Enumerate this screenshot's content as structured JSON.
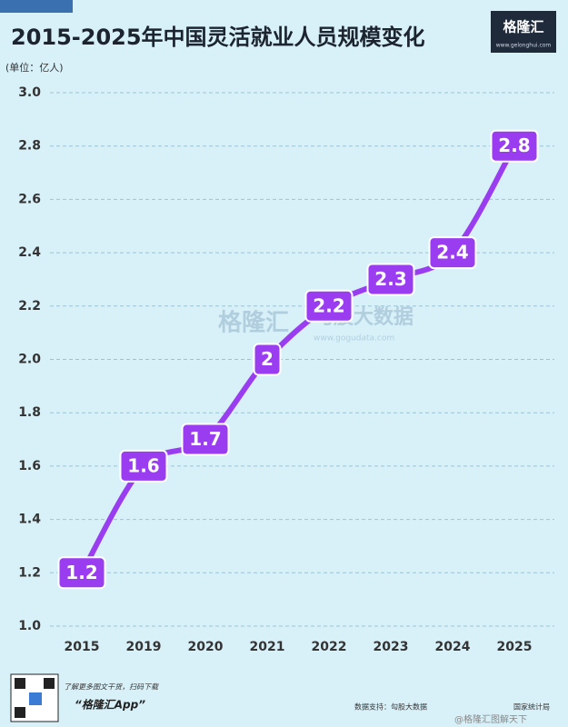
{
  "chart_data": {
    "type": "line",
    "title": "2015-2025年中国灵活就业人员规模变化",
    "y_label": "(单位：亿人)",
    "categories": [
      "2015",
      "2019",
      "2020",
      "2021",
      "2022",
      "2023",
      "2024",
      "2025"
    ],
    "values": [
      1.2,
      1.6,
      1.7,
      2,
      2.2,
      2.3,
      2.4,
      2.8
    ],
    "color": "#9a3df0",
    "ylim": [
      1.0,
      3.0
    ],
    "yticks": [
      {
        "value": 1.0,
        "label": "1.0"
      },
      1.2,
      1.4,
      1.6,
      1.8,
      {
        "value": 2.0,
        "label": "2.0"
      },
      2.2,
      2.4,
      2.6,
      2.8,
      {
        "value": 3.0,
        "label": "3.0"
      }
    ],
    "grid": true
  },
  "brand": {
    "name": "格隆汇",
    "url": "www.gelonghui.com"
  },
  "watermark": {
    "left": "格隆汇",
    "right": "勾股大数据",
    "url": "www.gogudata.com"
  },
  "footer": {
    "promo": "了解更多图文干货，扫码下载",
    "app": "“格隆汇App”",
    "source": "数据支持：勾股大数据",
    "source2": "国家统计局",
    "weibo": "@格隆汇图解天下"
  }
}
